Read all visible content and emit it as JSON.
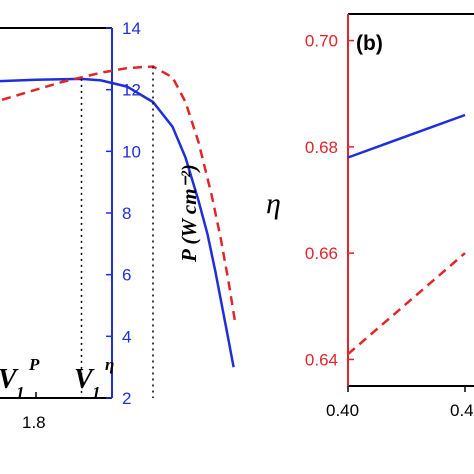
{
  "chart_data": [
    {
      "panel": "a",
      "type": "line",
      "xlabel": "",
      "ylabel_right": "P (W cm⁻²)",
      "ylim_right": [
        2,
        14
      ],
      "y_ticks_right": [
        "2",
        "4",
        "6",
        "8",
        "10",
        "12",
        "14"
      ],
      "x_tick_labels": [
        "1.8"
      ],
      "annotations": [
        {
          "text_main": "V",
          "sub": "1",
          "sup": "P",
          "x": 1.835
        },
        {
          "text_main": "V",
          "sub": "1",
          "sup": "η",
          "x": 1.89
        }
      ],
      "series": [
        {
          "style": "solid",
          "color": "#1f2fd8",
          "x": [
            1.65,
            1.68,
            1.7,
            1.72,
            1.74,
            1.76,
            1.78,
            1.8,
            1.82,
            1.835,
            1.85,
            1.87,
            1.89,
            1.905,
            1.915,
            1.925,
            1.932,
            1.938,
            1.943,
            1.948,
            1.952
          ],
          "y": [
            12.0,
            12.1,
            12.15,
            12.2,
            12.23,
            12.26,
            12.29,
            12.32,
            12.34,
            12.35,
            12.3,
            12.1,
            11.6,
            10.8,
            9.8,
            8.4,
            7.3,
            6.1,
            5.0,
            3.9,
            3.0
          ]
        },
        {
          "style": "dashed",
          "color": "#e0262a",
          "x": [
            1.74,
            1.76,
            1.78,
            1.8,
            1.82,
            1.835,
            1.85,
            1.87,
            1.89,
            1.905,
            1.915,
            1.925,
            1.935,
            1.942,
            1.948,
            1.953
          ],
          "y": [
            11.4,
            11.5,
            11.75,
            12.0,
            12.25,
            12.4,
            12.55,
            12.7,
            12.75,
            12.4,
            11.6,
            10.3,
            8.6,
            7.2,
            5.8,
            4.5
          ]
        }
      ]
    },
    {
      "panel": "b",
      "type": "line",
      "label": "(b)",
      "ylabel": "η",
      "ylim": [
        0.635,
        0.705
      ],
      "y_ticks": [
        "0.64",
        "0.66",
        "0.68",
        "0.70"
      ],
      "x_tick_labels": [
        "0.40",
        "0.4"
      ],
      "series": [
        {
          "style": "solid",
          "color": "#1f2fd8",
          "x": [
            0.4,
            0.45
          ],
          "y": [
            0.678,
            0.686
          ]
        },
        {
          "style": "dashed",
          "color": "#e0262a",
          "x": [
            0.4,
            0.45
          ],
          "y": [
            0.641,
            0.66
          ]
        }
      ]
    }
  ],
  "colors": {
    "right_axis": "#1f2fd8",
    "left_axis_b": "#e0262a",
    "frame": "#000000"
  }
}
